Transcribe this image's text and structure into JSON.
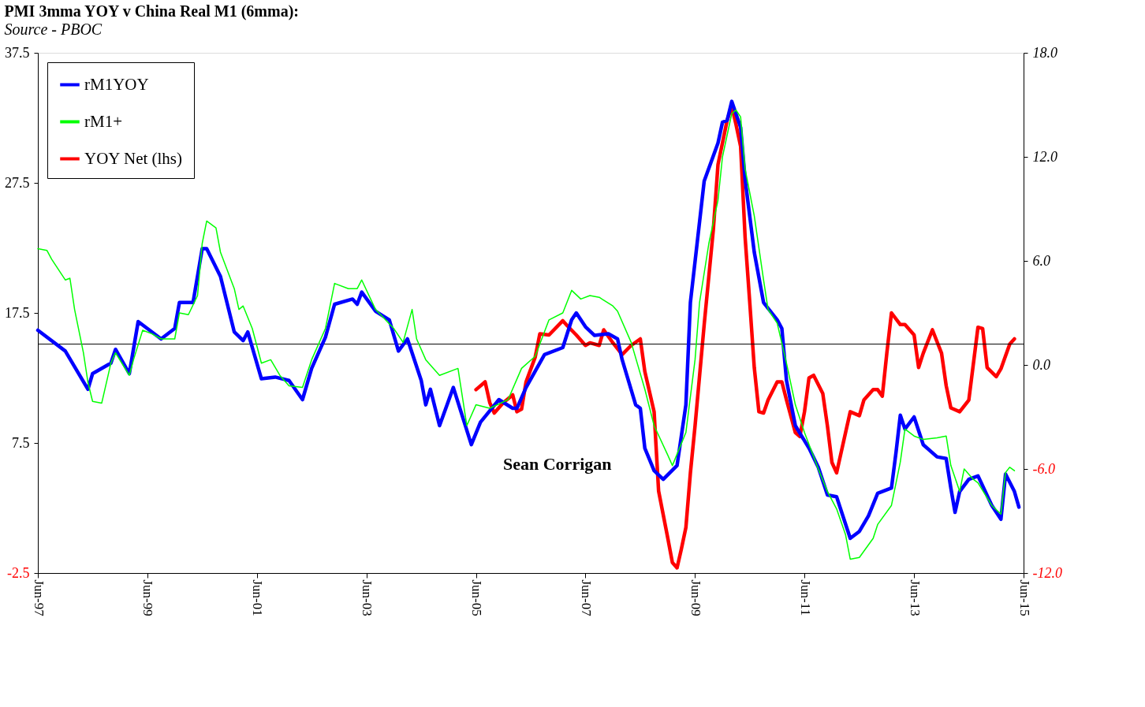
{
  "chart_data": {
    "type": "line",
    "title": "PMI 3mma YOY  v China Real M1 (6mma):",
    "subtitle": "Source - PBOC",
    "annotations": [
      "Sean Corrigan"
    ],
    "xlim": [
      "1997-06",
      "2015-06"
    ],
    "xticks": [
      {
        "value": "1997-06",
        "label": "Jun-97"
      },
      {
        "value": "1999-06",
        "label": "Jun-99"
      },
      {
        "value": "2001-06",
        "label": "Jun-01"
      },
      {
        "value": "2003-06",
        "label": "Jun-03"
      },
      {
        "value": "2005-06",
        "label": "Jun-05"
      },
      {
        "value": "2007-06",
        "label": "Jun-07"
      },
      {
        "value": "2009-06",
        "label": "Jun-09"
      },
      {
        "value": "2011-06",
        "label": "Jun-11"
      },
      {
        "value": "2013-06",
        "label": "Jun-13"
      },
      {
        "value": "2015-06",
        "label": "Jun-15"
      }
    ],
    "ylim": [
      -2.5,
      37.5
    ],
    "yticks": [
      -2.5,
      7.5,
      17.5,
      27.5,
      37.5
    ],
    "y2lim": [
      -12,
      18
    ],
    "y2ticks": [
      {
        "value": -12,
        "label": "-12.0"
      },
      {
        "value": -6,
        "label": "-6.0"
      },
      {
        "value": 0,
        "label": "0.0"
      },
      {
        "value": 6,
        "label": "6.0"
      },
      {
        "value": 12,
        "label": "12.0"
      },
      {
        "value": 18,
        "label": "18.0"
      }
    ],
    "ref_lines": [
      {
        "axis": "y",
        "value": 15.1,
        "color": "#000000"
      }
    ],
    "grid": false,
    "legend": "top left",
    "line_style": "solid",
    "marker": "none",
    "series": [
      {
        "name": "rM1YOY",
        "color": "#0000ff",
        "axis": "y2",
        "x": [
          "1997-06",
          "1997-12",
          "1998-05",
          "1998-06",
          "1998-10",
          "1998-11",
          "1999-02",
          "1999-04",
          "1999-09",
          "1999-12",
          "2000-01",
          "2000-04",
          "2000-06",
          "2000-07",
          "2000-10",
          "2001-01",
          "2001-03",
          "2001-04",
          "2001-07",
          "2001-10",
          "2002-01",
          "2002-04",
          "2002-06",
          "2002-09",
          "2002-11",
          "2003-03",
          "2003-04",
          "2003-05",
          "2003-08",
          "2003-11",
          "2004-01",
          "2004-03",
          "2004-06",
          "2004-07",
          "2004-08",
          "2004-10",
          "2005-01",
          "2005-05",
          "2005-07",
          "2005-11",
          "2006-02",
          "2006-03",
          "2006-05",
          "2006-09",
          "2007-01",
          "2007-03",
          "2007-04",
          "2007-06",
          "2007-08",
          "2007-11",
          "2008-01",
          "2008-02",
          "2008-05",
          "2008-06",
          "2008-07",
          "2008-09",
          "2008-11",
          "2009-02",
          "2009-04",
          "2009-05",
          "2009-08",
          "2009-11",
          "2009-12",
          "2010-01",
          "2010-02",
          "2010-04",
          "2010-05",
          "2010-07",
          "2010-09",
          "2010-12",
          "2011-01",
          "2011-02",
          "2011-04",
          "2011-07",
          "2011-09",
          "2011-11",
          "2012-01",
          "2012-04",
          "2012-06",
          "2012-08",
          "2012-10",
          "2013-01",
          "2013-02",
          "2013-03",
          "2013-04",
          "2013-06",
          "2013-08",
          "2013-11",
          "2014-01",
          "2014-02",
          "2014-03",
          "2014-04",
          "2014-06",
          "2014-08",
          "2014-11",
          "2015-01",
          "2015-02",
          "2015-04",
          "2015-05"
        ],
        "values": [
          2.0,
          0.8,
          -1.4,
          -0.5,
          0.1,
          0.9,
          -0.5,
          2.5,
          1.5,
          2.1,
          3.6,
          3.6,
          6.7,
          6.7,
          5.1,
          1.9,
          1.4,
          1.9,
          -0.8,
          -0.7,
          -0.9,
          -2.0,
          -0.2,
          1.6,
          3.5,
          3.8,
          3.5,
          4.2,
          3.1,
          2.6,
          0.8,
          1.5,
          -0.9,
          -2.3,
          -1.4,
          -3.5,
          -1.3,
          -4.6,
          -3.3,
          -2.0,
          -2.5,
          -2.5,
          -1.3,
          0.6,
          1.0,
          2.6,
          3.0,
          2.2,
          1.7,
          1.8,
          1.5,
          0.3,
          -2.3,
          -2.5,
          -4.8,
          -6.1,
          -6.6,
          -5.8,
          -2.3,
          3.6,
          10.6,
          12.8,
          14.0,
          14.1,
          15.2,
          13.7,
          10.7,
          6.5,
          3.6,
          2.6,
          2.1,
          -0.9,
          -3.5,
          -4.8,
          -5.9,
          -7.5,
          -7.6,
          -10.0,
          -9.6,
          -8.7,
          -7.4,
          -7.1,
          -5.0,
          -2.9,
          -3.7,
          -3.0,
          -4.6,
          -5.3,
          -5.4,
          -7.1,
          -8.5,
          -7.3,
          -6.6,
          -6.4,
          -8.1,
          -8.9,
          -6.3,
          -7.3,
          -8.2
        ]
      },
      {
        "name": "rM1+",
        "color": "#00ff00",
        "axis": "y2",
        "x": [
          "1997-06",
          "1997-08",
          "1997-09",
          "1997-12",
          "1998-01",
          "1998-02",
          "1998-04",
          "1998-05",
          "1998-06",
          "1998-08",
          "1998-10",
          "1998-11",
          "1999-02",
          "1999-03",
          "1999-05",
          "1999-07",
          "1999-09",
          "1999-12",
          "2000-01",
          "2000-03",
          "2000-05",
          "2000-06",
          "2000-07",
          "2000-09",
          "2000-10",
          "2001-01",
          "2001-02",
          "2001-03",
          "2001-05",
          "2001-07",
          "2001-09",
          "2001-11",
          "2002-01",
          "2002-04",
          "2002-06",
          "2002-09",
          "2002-11",
          "2003-02",
          "2003-04",
          "2003-05",
          "2003-08",
          "2003-12",
          "2004-02",
          "2004-04",
          "2004-05",
          "2004-07",
          "2004-10",
          "2005-02",
          "2005-04",
          "2005-06",
          "2005-09",
          "2006-01",
          "2006-04",
          "2006-07",
          "2006-10",
          "2007-01",
          "2007-03",
          "2007-05",
          "2007-07",
          "2007-09",
          "2007-12",
          "2008-01",
          "2008-04",
          "2008-07",
          "2008-09",
          "2008-12",
          "2009-01",
          "2009-04",
          "2009-06",
          "2009-07",
          "2009-09",
          "2009-11",
          "2009-12",
          "2010-02",
          "2010-03",
          "2010-04",
          "2010-05",
          "2010-07",
          "2010-09",
          "2010-10",
          "2010-12",
          "2011-02",
          "2011-04",
          "2011-06",
          "2011-09",
          "2011-11",
          "2012-01",
          "2012-03",
          "2012-04",
          "2012-06",
          "2012-09",
          "2012-10",
          "2013-01",
          "2013-03",
          "2013-04",
          "2013-06",
          "2013-08",
          "2013-11",
          "2014-01",
          "2014-02",
          "2014-04",
          "2014-05",
          "2014-07",
          "2014-08",
          "2014-11",
          "2015-01",
          "2015-02",
          "2015-03",
          "2015-04"
        ],
        "values": [
          6.7,
          6.6,
          6.1,
          4.9,
          5.0,
          3.2,
          0.7,
          -1.0,
          -2.1,
          -2.2,
          0.1,
          0.7,
          -0.6,
          0.3,
          2.0,
          1.8,
          1.5,
          1.5,
          3.0,
          2.9,
          4.0,
          7.0,
          8.3,
          7.9,
          6.5,
          4.4,
          3.2,
          3.4,
          2.1,
          0.1,
          0.3,
          -0.6,
          -1.2,
          -1.3,
          0.3,
          2.1,
          4.7,
          4.4,
          4.4,
          4.9,
          3.2,
          2.1,
          1.3,
          3.2,
          1.5,
          0.3,
          -0.6,
          -0.2,
          -3.5,
          -2.3,
          -2.5,
          -2.0,
          -0.2,
          0.5,
          2.6,
          3.0,
          4.3,
          3.8,
          4.0,
          3.9,
          3.4,
          3.1,
          1.3,
          -1.4,
          -3.5,
          -5.2,
          -5.8,
          -3.9,
          0.3,
          3.6,
          7.0,
          9.5,
          12.0,
          14.5,
          14.7,
          14.3,
          11.3,
          8.6,
          4.9,
          3.2,
          2.4,
          0.1,
          -2.3,
          -3.9,
          -6.0,
          -7.3,
          -8.3,
          -9.8,
          -11.2,
          -11.1,
          -10.0,
          -9.2,
          -8.1,
          -5.6,
          -3.7,
          -4.1,
          -4.3,
          -4.2,
          -4.1,
          -5.8,
          -7.3,
          -6.0,
          -6.6,
          -6.8,
          -8.1,
          -8.6,
          -6.2,
          -5.9,
          -6.1
        ]
      },
      {
        "name": "YOY Net (lhs)",
        "color": "#ff0000",
        "axis": "y",
        "x": [
          "2005-06",
          "2005-08",
          "2005-09",
          "2005-10",
          "2005-12",
          "2006-02",
          "2006-03",
          "2006-04",
          "2006-05",
          "2006-07",
          "2006-08",
          "2006-10",
          "2007-01",
          "2007-02",
          "2007-04",
          "2007-06",
          "2007-07",
          "2007-09",
          "2007-10",
          "2007-12",
          "2008-02",
          "2008-04",
          "2008-06",
          "2008-07",
          "2008-09",
          "2008-10",
          "2008-12",
          "2009-01",
          "2009-02",
          "2009-03",
          "2009-04",
          "2009-05",
          "2009-06",
          "2009-08",
          "2009-10",
          "2009-11",
          "2010-01",
          "2010-02",
          "2010-03",
          "2010-04",
          "2010-05",
          "2010-06",
          "2010-07",
          "2010-08",
          "2010-09",
          "2010-10",
          "2010-12",
          "2011-01",
          "2011-02",
          "2011-04",
          "2011-05",
          "2011-06",
          "2011-07",
          "2011-08",
          "2011-10",
          "2011-11",
          "2011-12",
          "2012-01",
          "2012-03",
          "2012-04",
          "2012-06",
          "2012-07",
          "2012-09",
          "2012-10",
          "2012-11",
          "2012-12",
          "2013-01",
          "2013-03",
          "2013-04",
          "2013-06",
          "2013-07",
          "2013-08",
          "2013-10",
          "2013-12",
          "2014-01",
          "2014-02",
          "2014-04",
          "2014-06",
          "2014-08",
          "2014-09",
          "2014-10",
          "2014-12",
          "2015-01",
          "2015-03",
          "2015-04"
        ],
        "values": [
          11.6,
          12.2,
          10.6,
          9.8,
          10.6,
          11.2,
          9.9,
          10.1,
          12.2,
          14.1,
          15.9,
          15.8,
          16.9,
          16.5,
          15.8,
          15.0,
          15.2,
          15.0,
          16.2,
          15.2,
          14.3,
          15.0,
          15.5,
          13.0,
          9.9,
          3.8,
          0.2,
          -1.7,
          -2.1,
          -0.7,
          1.0,
          5.2,
          8.8,
          16.6,
          23.9,
          28.9,
          32.3,
          33.4,
          32.0,
          30.3,
          23.3,
          18.3,
          13.3,
          9.9,
          9.8,
          10.8,
          12.2,
          12.2,
          10.8,
          8.3,
          8.0,
          9.9,
          12.5,
          12.7,
          11.3,
          8.8,
          6.0,
          5.2,
          8.3,
          9.9,
          9.6,
          10.8,
          11.6,
          11.6,
          11.1,
          14.4,
          17.5,
          16.6,
          16.6,
          15.8,
          13.3,
          14.4,
          16.2,
          14.4,
          11.9,
          10.2,
          9.9,
          10.8,
          16.4,
          16.3,
          13.3,
          12.6,
          13.2,
          15.1,
          15.5
        ]
      }
    ]
  }
}
